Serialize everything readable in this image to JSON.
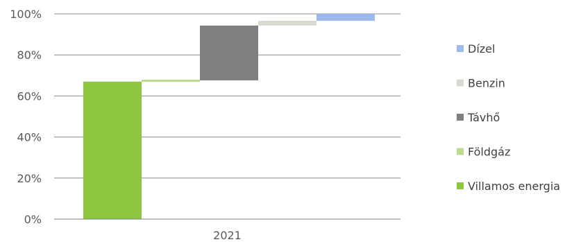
{
  "chart_data": {
    "type": "bar",
    "subtype": "stacked-waterfall",
    "categories": [
      "2021"
    ],
    "series": [
      {
        "name": "Villamos energia",
        "start": 0,
        "end": 67,
        "color": "#8DC63F"
      },
      {
        "name": "Földgáz",
        "start": 67,
        "end": 67.6,
        "color": "#BDDC8F"
      },
      {
        "name": "Távhő",
        "start": 67.6,
        "end": 94.3,
        "color": "#7F7F7F"
      },
      {
        "name": "Benzin",
        "start": 94.3,
        "end": 96.6,
        "color": "#D9D9D2"
      },
      {
        "name": "Dízel",
        "start": 96.6,
        "end": 100,
        "color": "#9DB9EE"
      }
    ],
    "ylim": [
      0,
      100
    ],
    "yticks": [
      "0%",
      "20%",
      "40%",
      "60%",
      "80%",
      "100%"
    ],
    "legend_position": "right",
    "grid": true,
    "xlabel": "",
    "ylabel": "",
    "title": ""
  }
}
